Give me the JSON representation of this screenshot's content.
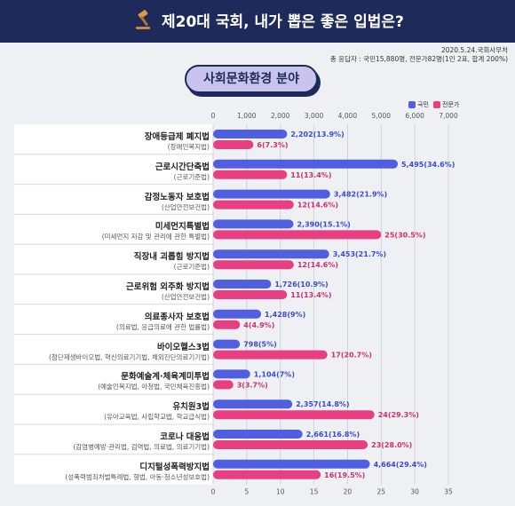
{
  "header": {
    "title": "제20대 국회, 내가 뽑은 좋은 입법은?",
    "date_source": "2020.5.24.국회사무처",
    "respondents": "총 응답자 : 국민15,880명, 전문가82명(1인 2표, 합계 200%)"
  },
  "section_title": "사회문화환경 분야",
  "colors": {
    "citizen": "#4f5fe0",
    "expert": "#e83e82",
    "header_bg": "#1e2a5a",
    "pill_bg": "#c9c4ee"
  },
  "chart_data": {
    "type": "bar",
    "orientation": "horizontal",
    "legend": [
      "국민",
      "전문가"
    ],
    "legend_position": "top-right",
    "axis_top": {
      "ticks": [
        "0",
        "1,000",
        "2,000",
        "3,000",
        "4,000",
        "5,000",
        "6,000",
        "7,000"
      ],
      "range": [
        0,
        7000
      ]
    },
    "axis_bottom": {
      "ticks": [
        "0",
        "5",
        "10",
        "15",
        "20",
        "25",
        "30",
        "35"
      ],
      "range": [
        0,
        35
      ]
    },
    "categories": [
      {
        "name": "장애등급제 폐지법",
        "sub": "(장애인복지법)",
        "citizen": 2202,
        "citizen_label": "2,202(13.9%)",
        "expert": 6,
        "expert_label": "6(7.3%)"
      },
      {
        "name": "근로시간단축법",
        "sub": "(근로기준법)",
        "citizen": 5495,
        "citizen_label": "5,495(34.6%)",
        "expert": 11,
        "expert_label": "11(13.4%)"
      },
      {
        "name": "감정노동자 보호법",
        "sub": "(산업안전보건법)",
        "citizen": 3482,
        "citizen_label": "3,482(21.9%)",
        "expert": 12,
        "expert_label": "12(14.6%)"
      },
      {
        "name": "미세먼지특별법",
        "sub": "(미세먼지 저감 및 관리에 관한 특별법)",
        "citizen": 2390,
        "citizen_label": "2,390(15.1%)",
        "expert": 25,
        "expert_label": "25(30.5%)"
      },
      {
        "name": "직장내 괴롭힘 방지법",
        "sub": "(근로기준법)",
        "citizen": 3453,
        "citizen_label": "3,453(21.7%)",
        "expert": 12,
        "expert_label": "12(14.6%)"
      },
      {
        "name": "근로위험 외주화 방지법",
        "sub": "(산업안전보건법)",
        "citizen": 1726,
        "citizen_label": "1,726(10.9%)",
        "expert": 11,
        "expert_label": "11(13.4%)"
      },
      {
        "name": "의료종사자 보호법",
        "sub": "(의료법, 응급의료에 관한 법률법)",
        "citizen": 1428,
        "citizen_label": "1,428(9%)",
        "expert": 4,
        "expert_label": "4(4.9%)"
      },
      {
        "name": "바이오헬스3법",
        "sub": "(첨단재생바이오법, 혁신의료기기법, 체외진단의료기기법)",
        "citizen": 798,
        "citizen_label": "798(5%)",
        "expert": 17,
        "expert_label": "17(20.7%)"
      },
      {
        "name": "문화예술계·체육계미투법",
        "sub": "(예술인복지법, 아청법, 국민체육진흥법)",
        "citizen": 1104,
        "citizen_label": "1,104(7%)",
        "expert": 3,
        "expert_label": "3(3.7%)"
      },
      {
        "name": "유치원3법",
        "sub": "(유아교육법, 사립학교법, 학교급식법)",
        "citizen": 2357,
        "citizen_label": "2,357(14.8%)",
        "expert": 24,
        "expert_label": "24(29.3%)"
      },
      {
        "name": "코로나 대응법",
        "sub": "(감염병예방·관리법, 검역법, 의료법, 의료기기법)",
        "citizen": 2661,
        "citizen_label": "2,661(16.8%)",
        "expert": 23,
        "expert_label": "23(28.0%)"
      },
      {
        "name": "디지털성폭력방지법",
        "sub": "(성폭력범죄처벌특례법, 형법, 아동·청소년성보호법)",
        "citizen": 4664,
        "citizen_label": "4,664(29.4%)",
        "expert": 16,
        "expert_label": "16(19.5%)"
      }
    ]
  }
}
